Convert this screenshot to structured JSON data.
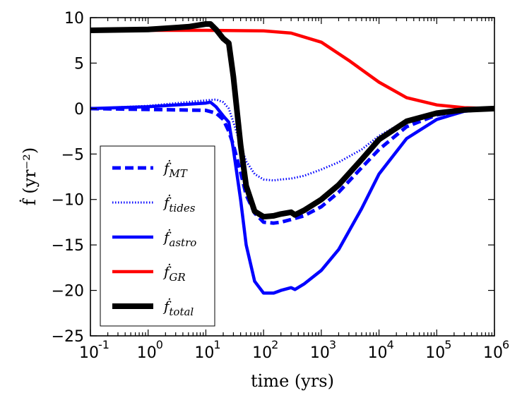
{
  "chart_data": {
    "type": "line",
    "title": "",
    "xlabel": "time (yrs)",
    "ylabel": "ḟ (yr⁻²)",
    "xscale": "log",
    "xlim": [
      0.1,
      1000000
    ],
    "ylim": [
      -25,
      10
    ],
    "x_ticks": [
      {
        "base": "10",
        "exp": "-1"
      },
      {
        "base": "10",
        "exp": "0"
      },
      {
        "base": "10",
        "exp": "1"
      },
      {
        "base": "10",
        "exp": "2"
      },
      {
        "base": "10",
        "exp": "3"
      },
      {
        "base": "10",
        "exp": "4"
      },
      {
        "base": "10",
        "exp": "5"
      },
      {
        "base": "10",
        "exp": "6"
      }
    ],
    "y_ticks": [
      "10",
      "5",
      "0",
      "−5",
      "−10",
      "−15",
      "−20",
      "−25"
    ],
    "y_tick_values": [
      10,
      5,
      0,
      -5,
      -10,
      -15,
      -20,
      -25
    ],
    "legend_position": "lower-left",
    "series": [
      {
        "name": "ḟ_MT",
        "label_base": "ḟ",
        "label_sub": "MT",
        "color": "#0000ff",
        "style": "dashed",
        "points": [
          [
            0.1,
            0
          ],
          [
            1,
            -0.1
          ],
          [
            10,
            -0.2
          ],
          [
            15,
            -0.5
          ],
          [
            20,
            -1.2
          ],
          [
            25,
            -2.5
          ],
          [
            30,
            -4
          ],
          [
            40,
            -7
          ],
          [
            50,
            -9.5
          ],
          [
            70,
            -11.5
          ],
          [
            100,
            -12.5
          ],
          [
            150,
            -12.6
          ],
          [
            200,
            -12.5
          ],
          [
            300,
            -12.2
          ],
          [
            500,
            -11.8
          ],
          [
            1000,
            -10.8
          ],
          [
            2000,
            -9.2
          ],
          [
            5000,
            -6.5
          ],
          [
            10000,
            -4.5
          ],
          [
            30000,
            -2
          ],
          [
            100000,
            -0.7
          ],
          [
            300000,
            -0.2
          ],
          [
            1000000,
            0
          ]
        ]
      },
      {
        "name": "ḟ_tides",
        "label_base": "ḟ",
        "label_sub": "tides",
        "color": "#0000ff",
        "style": "dotted",
        "points": [
          [
            0.1,
            0
          ],
          [
            1,
            0.3
          ],
          [
            10,
            0.9
          ],
          [
            15,
            1.0
          ],
          [
            20,
            0.7
          ],
          [
            25,
            0
          ],
          [
            30,
            -1.5
          ],
          [
            40,
            -4
          ],
          [
            50,
            -5.8
          ],
          [
            70,
            -7.2
          ],
          [
            100,
            -7.8
          ],
          [
            150,
            -7.9
          ],
          [
            200,
            -7.8
          ],
          [
            300,
            -7.7
          ],
          [
            500,
            -7.4
          ],
          [
            1000,
            -6.7
          ],
          [
            2000,
            -5.9
          ],
          [
            5000,
            -4.5
          ],
          [
            10000,
            -3
          ],
          [
            30000,
            -1.3
          ],
          [
            100000,
            -0.5
          ],
          [
            300000,
            -0.2
          ],
          [
            1000000,
            0
          ]
        ]
      },
      {
        "name": "ḟ_astro",
        "label_base": "ḟ",
        "label_sub": "astro",
        "color": "#0000ff",
        "style": "solid",
        "points": [
          [
            0.1,
            0
          ],
          [
            1,
            0.2
          ],
          [
            10,
            0.6
          ],
          [
            12,
            0.7
          ],
          [
            15,
            0.2
          ],
          [
            20,
            -0.8
          ],
          [
            25,
            -1.5
          ],
          [
            30,
            -4.5
          ],
          [
            40,
            -10
          ],
          [
            50,
            -15
          ],
          [
            70,
            -19
          ],
          [
            100,
            -20.3
          ],
          [
            150,
            -20.3
          ],
          [
            200,
            -20
          ],
          [
            300,
            -19.7
          ],
          [
            350,
            -19.9
          ],
          [
            500,
            -19.3
          ],
          [
            1000,
            -17.8
          ],
          [
            2000,
            -15.5
          ],
          [
            5000,
            -11
          ],
          [
            10000,
            -7.2
          ],
          [
            30000,
            -3.3
          ],
          [
            100000,
            -1.2
          ],
          [
            300000,
            -0.3
          ],
          [
            1000000,
            0
          ]
        ]
      },
      {
        "name": "ḟ_GR",
        "label_base": "ḟ",
        "label_sub": "GR",
        "color": "#ff0000",
        "style": "solid",
        "points": [
          [
            0.1,
            8.6
          ],
          [
            1,
            8.6
          ],
          [
            10,
            8.6
          ],
          [
            100,
            8.55
          ],
          [
            300,
            8.3
          ],
          [
            1000,
            7.3
          ],
          [
            3000,
            5.3
          ],
          [
            10000,
            2.9
          ],
          [
            30000,
            1.2
          ],
          [
            100000,
            0.4
          ],
          [
            300000,
            0.1
          ],
          [
            1000000,
            0
          ]
        ]
      },
      {
        "name": "ḟ_total",
        "label_base": "ḟ",
        "label_sub": "total",
        "color": "#000000",
        "style": "solid-thick",
        "points": [
          [
            0.1,
            8.6
          ],
          [
            1,
            8.7
          ],
          [
            5,
            9.0
          ],
          [
            10,
            9.3
          ],
          [
            12,
            9.3
          ],
          [
            15,
            8.7
          ],
          [
            20,
            7.7
          ],
          [
            25,
            7.2
          ],
          [
            30,
            3.5
          ],
          [
            40,
            -4
          ],
          [
            50,
            -8.5
          ],
          [
            70,
            -11.3
          ],
          [
            100,
            -11.9
          ],
          [
            150,
            -11.8
          ],
          [
            200,
            -11.6
          ],
          [
            300,
            -11.4
          ],
          [
            350,
            -11.7
          ],
          [
            500,
            -11.2
          ],
          [
            1000,
            -10
          ],
          [
            2000,
            -8.4
          ],
          [
            5000,
            -5.6
          ],
          [
            10000,
            -3.4
          ],
          [
            30000,
            -1.4
          ],
          [
            100000,
            -0.5
          ],
          [
            300000,
            -0.15
          ],
          [
            1000000,
            0
          ]
        ]
      }
    ]
  }
}
